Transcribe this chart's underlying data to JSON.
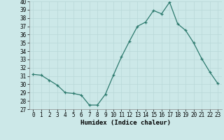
{
  "x": [
    0,
    1,
    2,
    3,
    4,
    5,
    6,
    7,
    8,
    9,
    10,
    11,
    12,
    13,
    14,
    15,
    16,
    17,
    18,
    19,
    20,
    21,
    22,
    23
  ],
  "y": [
    31.2,
    31.1,
    30.5,
    29.9,
    29.0,
    28.9,
    28.7,
    27.5,
    27.5,
    28.8,
    31.1,
    33.3,
    35.2,
    37.0,
    37.5,
    38.9,
    38.5,
    39.9,
    37.3,
    36.5,
    35.0,
    33.1,
    31.5,
    30.1
  ],
  "line_color": "#2d7a6e",
  "marker": "+",
  "markersize": 3.5,
  "linewidth": 0.9,
  "markeredgewidth": 0.9,
  "bg_color": "#cce8e8",
  "grid_color": "#b8d8d8",
  "xlabel": "Humidex (Indice chaleur)",
  "ylim": [
    27,
    40
  ],
  "xlim": [
    -0.5,
    23.5
  ],
  "yticks": [
    27,
    28,
    29,
    30,
    31,
    32,
    33,
    34,
    35,
    36,
    37,
    38,
    39,
    40
  ],
  "xticks": [
    0,
    1,
    2,
    3,
    4,
    5,
    6,
    7,
    8,
    9,
    10,
    11,
    12,
    13,
    14,
    15,
    16,
    17,
    18,
    19,
    20,
    21,
    22,
    23
  ],
  "tick_fontsize": 5.5,
  "label_fontsize": 6.5
}
